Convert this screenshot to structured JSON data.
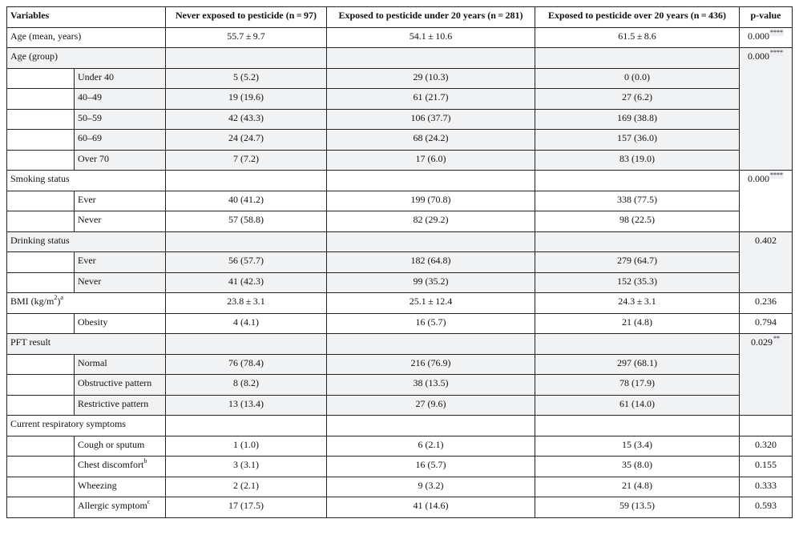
{
  "headers": {
    "variables": "Variables",
    "never": "Never exposed to pesticide (n = 97)",
    "under20": "Exposed to pesticide under 20 years (n = 281)",
    "over20": "Exposed to pesticide over 20 years (n = 436)",
    "pvalue": "p-value"
  },
  "rows": {
    "age_mean": {
      "label": "Age (mean, years)",
      "never": "55.7 ± 9.7",
      "under20": "54.1 ± 10.6",
      "over20": "61.5 ± 8.6",
      "p": "0.000",
      "sup": "****"
    },
    "age_group": {
      "label": "Age (group)",
      "p": "0.000",
      "sup": "****"
    },
    "age_under40": {
      "label": "Under 40",
      "never": "5 (5.2)",
      "under20": "29 (10.3)",
      "over20": "0 (0.0)"
    },
    "age_40": {
      "label": "40–49",
      "never": "19 (19.6)",
      "under20": "61 (21.7)",
      "over20": "27 (6.2)"
    },
    "age_50": {
      "label": "50–59",
      "never": "42 (43.3)",
      "under20": "106 (37.7)",
      "over20": "169 (38.8)"
    },
    "age_60": {
      "label": "60–69",
      "never": "24 (24.7)",
      "under20": "68 (24.2)",
      "over20": "157 (36.0)"
    },
    "age_over70": {
      "label": "Over 70",
      "never": "7 (7.2)",
      "under20": "17 (6.0)",
      "over20": "83 (19.0)"
    },
    "smoking": {
      "label": "Smoking status",
      "p": "0.000",
      "sup": "****"
    },
    "smoking_ever": {
      "label": "Ever",
      "never": "40 (41.2)",
      "under20": "199 (70.8)",
      "over20": "338 (77.5)"
    },
    "smoking_never": {
      "label": "Never",
      "never": "57 (58.8)",
      "under20": "82 (29.2)",
      "over20": "98 (22.5)"
    },
    "drinking": {
      "label": "Drinking status",
      "p": "0.402"
    },
    "drinking_ever": {
      "label": "Ever",
      "never": "56 (57.7)",
      "under20": "182 (64.8)",
      "over20": "279 (64.7)"
    },
    "drinking_never": {
      "label": "Never",
      "never": "41 (42.3)",
      "under20": "99 (35.2)",
      "over20": "152 (35.3)"
    },
    "bmi": {
      "label": "BMI (kg/m",
      "label_sup": "2",
      "label_end": ")",
      "label_note": "a",
      "never": "23.8 ± 3.1",
      "under20": "25.1 ± 12.4",
      "over20": "24.3 ± 3.1",
      "p": "0.236"
    },
    "obesity": {
      "label": "Obesity",
      "never": "4 (4.1)",
      "under20": "16 (5.7)",
      "over20": "21 (4.8)",
      "p": "0.794"
    },
    "pft": {
      "label": "PFT result",
      "p": "0.029",
      "sup": "**"
    },
    "pft_normal": {
      "label": "Normal",
      "never": "76 (78.4)",
      "under20": "216 (76.9)",
      "over20": "297 (68.1)"
    },
    "pft_obstructive": {
      "label": "Obstructive pattern",
      "never": "8 (8.2)",
      "under20": "38 (13.5)",
      "over20": "78 (17.9)"
    },
    "pft_restrictive": {
      "label": "Restrictive pattern",
      "never": "13 (13.4)",
      "under20": "27 (9.6)",
      "over20": "61 (14.0)"
    },
    "resp": {
      "label": "Current respiratory symptoms"
    },
    "cough": {
      "label": "Cough or sputum",
      "never": "1 (1.0)",
      "under20": "6 (2.1)",
      "over20": "15 (3.4)",
      "p": "0.320"
    },
    "chest": {
      "label": "Chest discomfort",
      "label_note": "b",
      "never": "3 (3.1)",
      "under20": "16 (5.7)",
      "over20": "35 (8.0)",
      "p": "0.155"
    },
    "wheezing": {
      "label": "Wheezing",
      "never": "2 (2.1)",
      "under20": "9 (3.2)",
      "over20": "21 (4.8)",
      "p": "0.333"
    },
    "allergic": {
      "label": "Allergic symptom",
      "label_note": "c",
      "never": "17 (17.5)",
      "under20": "41 (14.6)",
      "over20": "59 (13.5)",
      "p": "0.593"
    }
  }
}
